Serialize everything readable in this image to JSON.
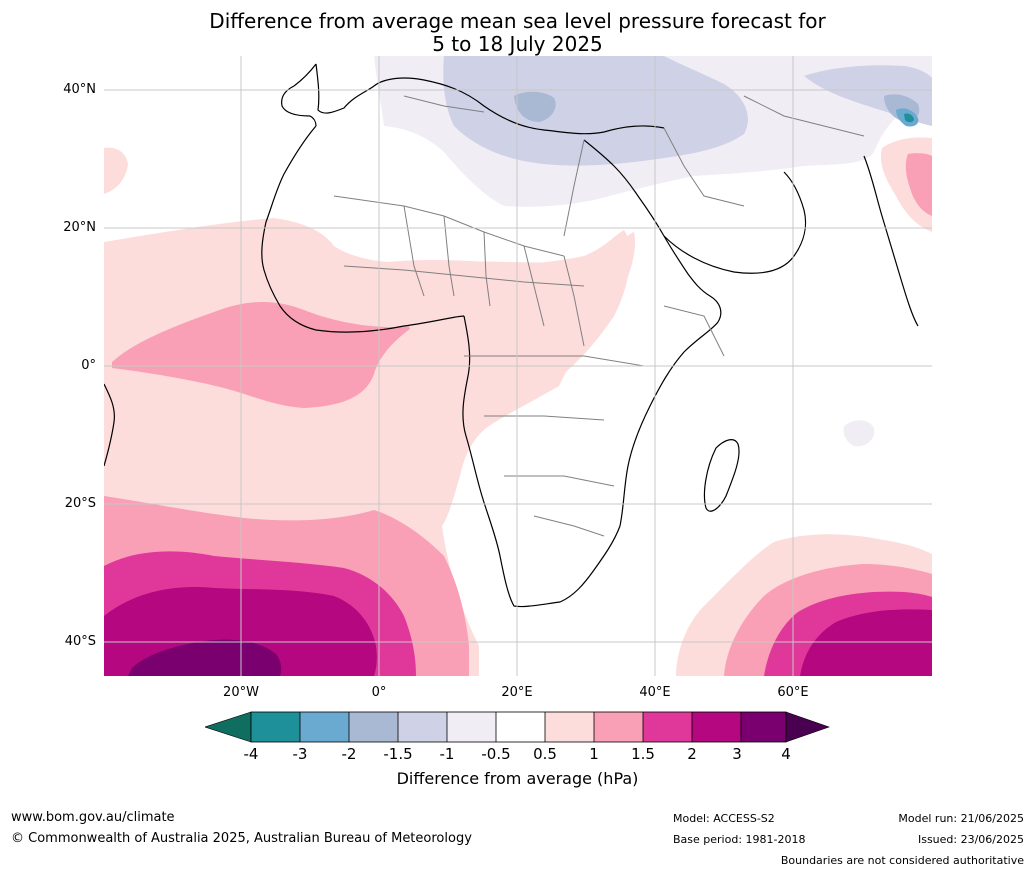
{
  "title": {
    "line1": "Difference from average mean sea level pressure forecast for",
    "line2": "5 to 18 July 2025"
  },
  "map": {
    "lat_labels": [
      "40°N",
      "20°N",
      "0°",
      "20°S",
      "40°S"
    ],
    "lon_labels": [
      "20°W",
      "0°",
      "20°E",
      "40°E",
      "60°E"
    ],
    "colors": {
      "neg4": "#0f6e5f",
      "neg3": "#1e9099",
      "neg2": "#6aaad0",
      "neg15": "#a9b9d4",
      "neg1": "#cfd1e6",
      "neg05": "#f1edf4",
      "zero": "#ffffff",
      "pos05": "#fddcdc",
      "pos1": "#f99fb6",
      "pos15": "#e0389a",
      "pos2": "#b5077f",
      "pos3": "#7a0070",
      "pos4": "#4a0050",
      "coast": "#000000",
      "border": "#808080",
      "grid": "#c8c8c8"
    }
  },
  "colorbar": {
    "ticks": [
      "-4",
      "-3",
      "-2",
      "-1.5",
      "-1",
      "-0.5",
      "0.5",
      "1",
      "1.5",
      "2",
      "3",
      "4"
    ],
    "label": "Difference from average (hPa)"
  },
  "footer": {
    "website": "www.bom.gov.au/climate",
    "copyright": "© Commonwealth of Australia 2025, Australian Bureau of Meteorology",
    "model": "Model: ACCESS-S2",
    "base_period": "Base period: 1981-2018",
    "model_run": "Model run: 21/06/2025",
    "issued": "Issued: 23/06/2025",
    "disclaimer": "Boundaries are not considered authoritative"
  }
}
